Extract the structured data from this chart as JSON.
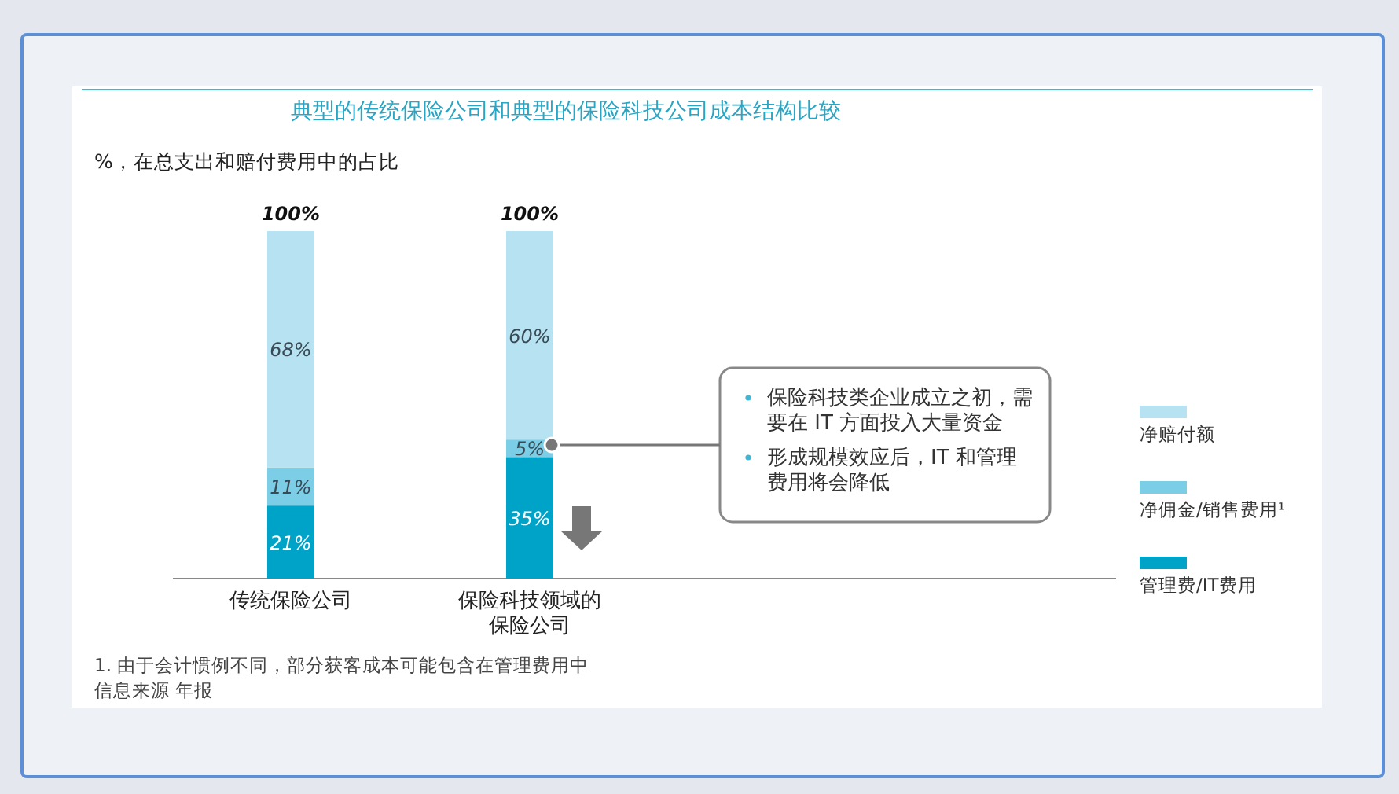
{
  "chart_data": {
    "type": "bar",
    "stacked": true,
    "title": "典型的传统保险公司和典型的保险科技公司成本结构比较",
    "subtitle": "%，在总支出和赔付费用中的占比",
    "categories": [
      "传统保险公司",
      "保险科技领域的保险公司"
    ],
    "series": [
      {
        "name": "管理费/IT费用",
        "color": "#00a3c8",
        "values": [
          21,
          35
        ],
        "value_labels": [
          "21%",
          "35%"
        ]
      },
      {
        "name": "净佣金/销售费用¹",
        "color": "#7ccde6",
        "values": [
          11,
          5
        ],
        "value_labels": [
          "11%",
          "5%"
        ]
      },
      {
        "name": "净赔付额",
        "color": "#b7e2f1",
        "values": [
          68,
          60
        ],
        "value_labels": [
          "68%",
          "60%"
        ]
      }
    ],
    "totals": [
      "100%",
      "100%"
    ],
    "ylim": [
      0,
      100
    ],
    "legend": "right",
    "annotations": [
      "保险科技类企业成立之初，需要在 IT 方面投入大量资金",
      "形成规模效应后，IT 和管理费用将会降低",
      "1. 由于会计惯例不同，部分获客成本可能包含在管理费用中",
      "信息来源 年报"
    ]
  }
}
